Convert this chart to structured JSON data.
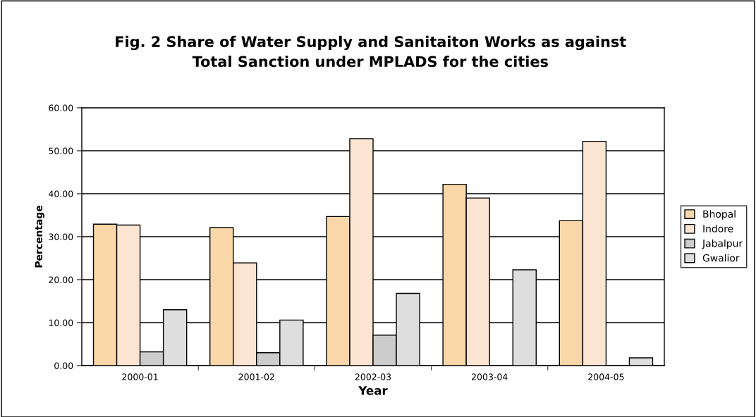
{
  "chart_data": {
    "type": "bar",
    "title": "Fig. 2 Share of Water Supply and Sanitaiton Works as against\nTotal Sanction under MPLADS for the cities",
    "xlabel": "Year",
    "ylabel": "Percentage",
    "categories": [
      "2000-01",
      "2001-02",
      "2002-03",
      "2003-04",
      "2004-05"
    ],
    "series": [
      {
        "name": "Bhopal",
        "color": "#f9d7a8",
        "values": [
          32.9,
          32.1,
          34.7,
          42.2,
          33.7
        ]
      },
      {
        "name": "Indore",
        "color": "#fde5d3",
        "values": [
          32.7,
          23.9,
          52.8,
          39.0,
          52.2
        ]
      },
      {
        "name": "Jabalpur",
        "color": "#cccccc",
        "values": [
          3.2,
          3.0,
          7.1,
          null,
          null
        ]
      },
      {
        "name": "Gwalior",
        "color": "#dedede",
        "values": [
          13.0,
          10.6,
          16.8,
          22.3,
          1.8
        ]
      }
    ],
    "ylim": [
      0,
      60
    ],
    "yticks": [
      {
        "value": 0,
        "label": "0.00"
      },
      {
        "value": 10,
        "label": "10.00"
      },
      {
        "value": 20,
        "label": "20.00"
      },
      {
        "value": 30,
        "label": "30.00"
      },
      {
        "value": 40,
        "label": "40.00"
      },
      {
        "value": 50,
        "label": "50.00"
      },
      {
        "value": 60,
        "label": "60.00"
      }
    ],
    "grid": "y",
    "legend": "right"
  }
}
